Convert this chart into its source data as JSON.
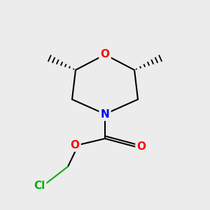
{
  "bg_color": "#ececec",
  "atom_colors": {
    "O": "#ff0000",
    "N": "#0000ff",
    "Cl": "#00b000",
    "C": "#000000"
  },
  "bond_color": "#000000",
  "bond_width": 1.5,
  "fig_size": [
    3.0,
    3.0
  ],
  "dpi": 100,
  "xlim": [
    0,
    300
  ],
  "ylim": [
    0,
    300
  ]
}
